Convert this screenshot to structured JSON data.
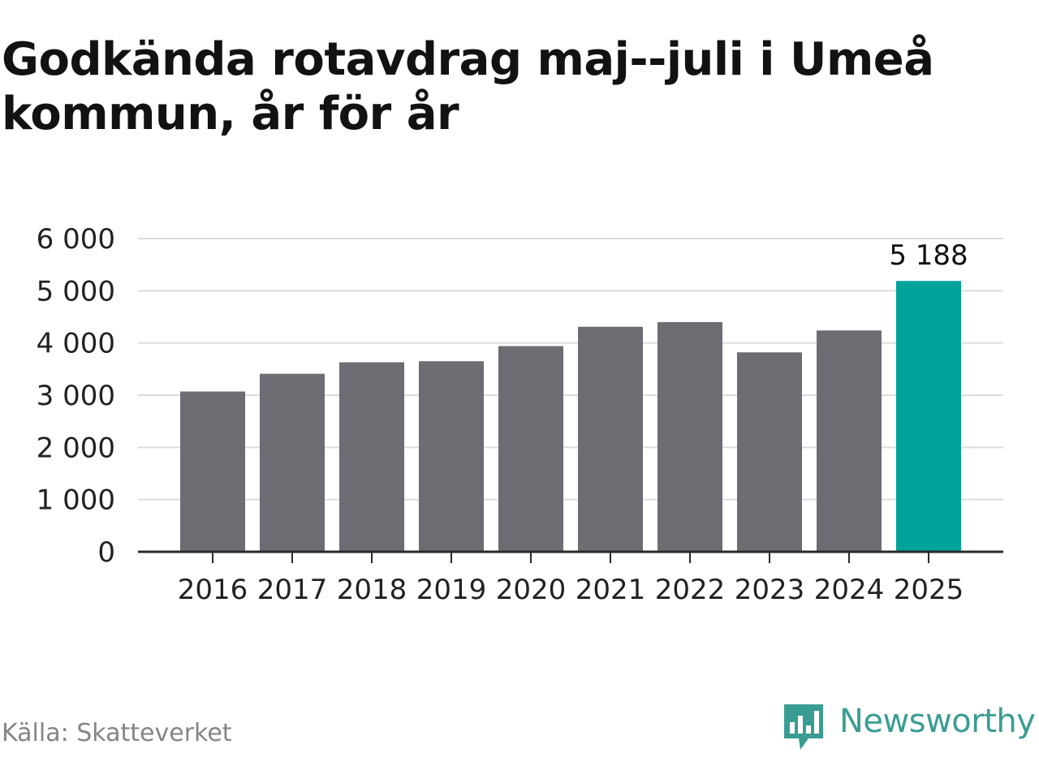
{
  "title": "Godkända rotavdrag maj--juli i Umeå kommun, år för år",
  "source": "Källa: Skatteverket",
  "brand": {
    "name": "Newsworthy",
    "icon": "newsworthy-logo-icon",
    "color": "#3a9d93"
  },
  "chart_data": {
    "type": "bar",
    "title": "Godkända rotavdrag maj--juli i Umeå kommun, år för år",
    "xlabel": "",
    "ylabel": "",
    "categories": [
      "2016",
      "2017",
      "2018",
      "2019",
      "2020",
      "2021",
      "2022",
      "2023",
      "2024",
      "2025"
    ],
    "values": [
      3070,
      3410,
      3630,
      3650,
      3940,
      4310,
      4400,
      3820,
      4240,
      5188
    ],
    "highlight_index": 9,
    "data_labels": [
      {
        "index": 9,
        "text": "5 188"
      }
    ],
    "ylim": [
      0,
      6000
    ],
    "y_ticks": [
      0,
      1000,
      2000,
      3000,
      4000,
      5000,
      6000
    ],
    "y_tick_labels": [
      "0",
      "1 000",
      "2 000",
      "3 000",
      "4 000",
      "5 000",
      "6 000"
    ],
    "grid": true,
    "colors": {
      "bar": "#6d6c73",
      "highlight": "#00a39a",
      "grid": "#dcdcdc",
      "axis": "#2a2a2a",
      "text": "#222222"
    }
  }
}
